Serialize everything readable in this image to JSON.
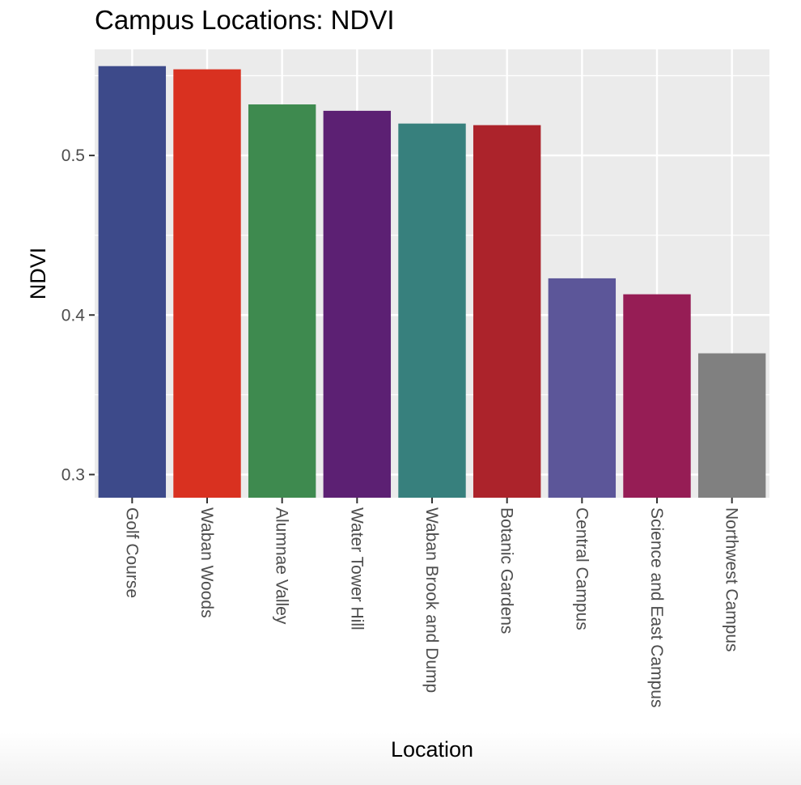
{
  "chart_data": {
    "type": "bar",
    "title": "Campus Locations: NDVI",
    "xlabel": "Location",
    "ylabel": "NDVI",
    "ylim": [
      0.2855,
      0.5665
    ],
    "yticks": [
      0.3,
      0.4,
      0.5
    ],
    "ytick_labels": [
      "0.3",
      "0.4",
      "0.5"
    ],
    "categories": [
      "Golf Course",
      "Waban Woods",
      "Alumnae Valley",
      "Water Tower Hill",
      "Waban Brook and Dump",
      "Botanic Gardens",
      "Central Campus",
      "Science and East Campus",
      "Northwest Campus"
    ],
    "values": [
      0.556,
      0.554,
      0.532,
      0.528,
      0.52,
      0.519,
      0.423,
      0.413,
      0.376
    ],
    "colors": [
      "#3d4a8a",
      "#d93120",
      "#3e8a4f",
      "#5c2073",
      "#37807d",
      "#ac232b",
      "#5c5699",
      "#961d55",
      "#808080"
    ],
    "grid": true,
    "legend": "none",
    "panel_background": "#ebebeb"
  }
}
